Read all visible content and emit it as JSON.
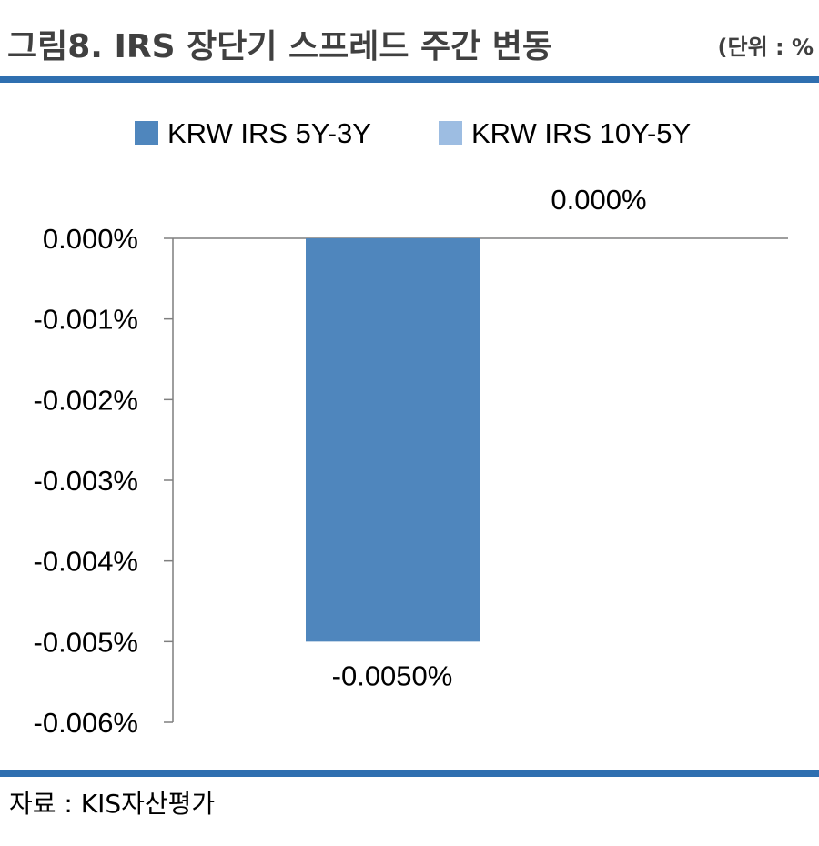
{
  "header": {
    "title": "그림8. IRS 장단기 스프레드 주간 변동",
    "unit": "(단위 : %"
  },
  "footer": {
    "source": "자료 : KIS자산평가"
  },
  "colors": {
    "rule": "#2f6fb0",
    "axis": "#7f7f7f"
  },
  "chart_data": {
    "type": "bar",
    "categories": [
      "KRW IRS 5Y-3Y",
      "KRW IRS 10Y-5Y"
    ],
    "series": [
      {
        "name": "KRW IRS 5Y-3Y",
        "color": "#4f86bd",
        "value": -0.005,
        "data_label": "-0.0050%"
      },
      {
        "name": "KRW IRS 10Y-5Y",
        "color": "#9dbde2",
        "value": 0.0,
        "data_label": "0.000%"
      }
    ],
    "ylim": [
      -0.006,
      0.0
    ],
    "yticks": [
      0.0,
      -0.001,
      -0.002,
      -0.003,
      -0.004,
      -0.005,
      -0.006
    ],
    "ytick_labels": [
      "0.000%",
      "-0.001%",
      "-0.002%",
      "-0.003%",
      "-0.004%",
      "-0.005%",
      "-0.006%"
    ],
    "legend_position": "top",
    "grid": false
  }
}
